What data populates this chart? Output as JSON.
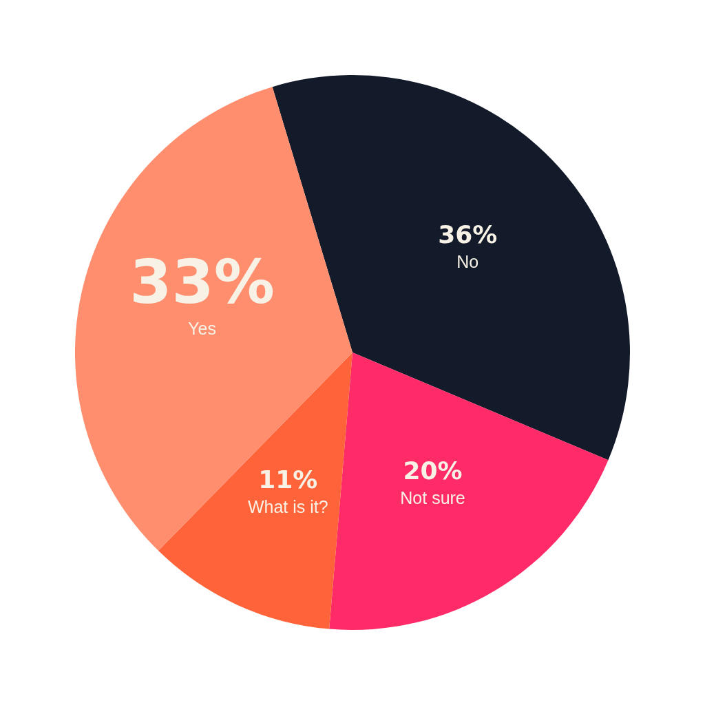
{
  "chart_data": {
    "type": "pie",
    "categories": [
      "No",
      "Not sure",
      "What is it?",
      "Yes"
    ],
    "values": [
      36,
      20,
      11,
      33
    ],
    "colors": [
      "#131a2a",
      "#ff2a68",
      "#ff6339",
      "#ff8e6e"
    ],
    "value_labels": [
      "36%",
      "20%",
      "11%",
      "33%"
    ]
  }
}
